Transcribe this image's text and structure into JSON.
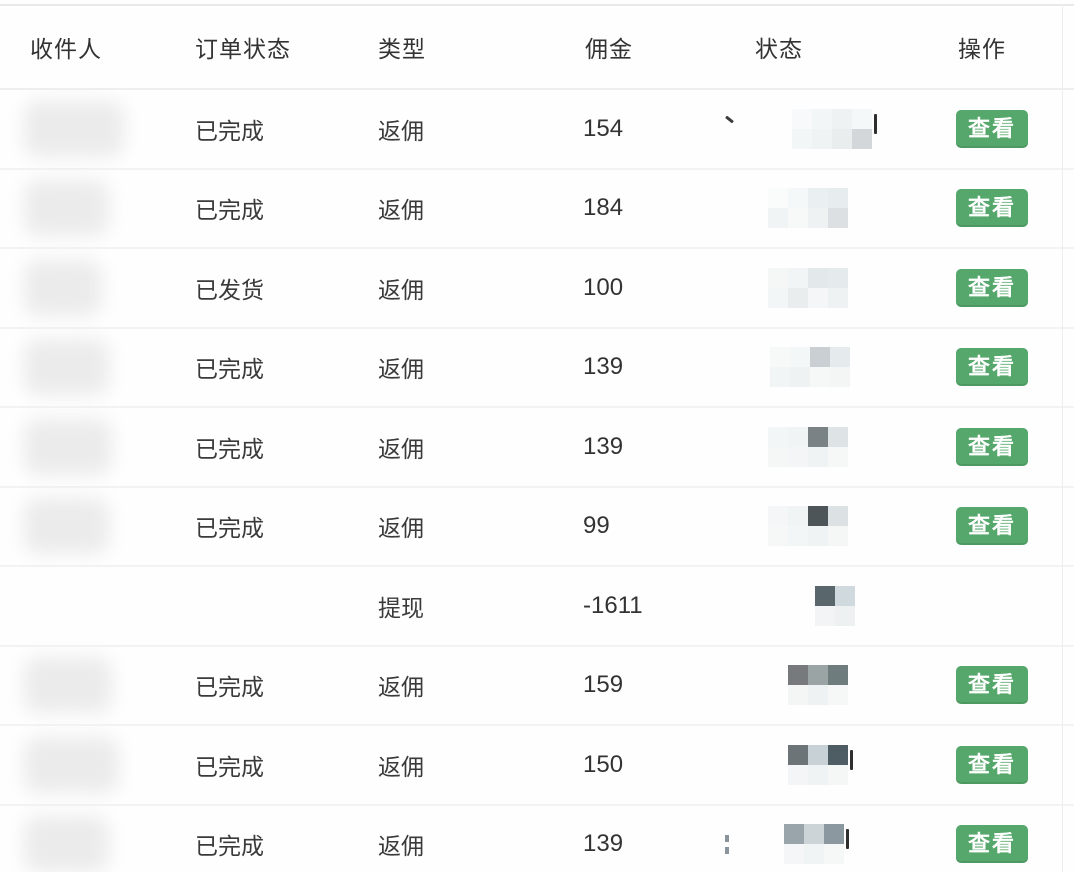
{
  "colors": {
    "accent_green": "#55a76b",
    "header_text": "#333333",
    "body_text": "#3a3a3a",
    "separator": "#f3f3f3",
    "top_border": "#e9e9e9"
  },
  "table": {
    "columns": [
      {
        "key": "recipient",
        "label": "收件人"
      },
      {
        "key": "order_status",
        "label": "订单状态"
      },
      {
        "key": "type",
        "label": "类型"
      },
      {
        "key": "commission",
        "label": "佣金"
      },
      {
        "key": "status",
        "label": "状态"
      },
      {
        "key": "action",
        "label": "操作"
      }
    ],
    "action_label": "查看",
    "rows": [
      {
        "recipient_redacted": true,
        "recipient_blob_width": 100,
        "order_status": "已完成",
        "type": "返佣",
        "commission": "154",
        "has_action": true,
        "mosaic": {
          "offset": 55,
          "prefix": "diag",
          "suffix": "bar",
          "tiles": [
            [
              "#f7f9fa",
              "#f3f6f7",
              "#eef2f3",
              "#f5f8f8"
            ],
            [
              "#f3f6f6",
              "#eff3f3",
              "#e9edee",
              "#d3d7da"
            ]
          ]
        }
      },
      {
        "recipient_redacted": true,
        "recipient_blob_width": 85,
        "order_status": "已完成",
        "type": "返佣",
        "commission": "184",
        "has_action": true,
        "mosaic": {
          "offset": 43,
          "prefix": null,
          "suffix": null,
          "tiles": [
            [
              "#fafbfb",
              "#f5f8f8",
              "#eaeff1",
              "#e7ecee"
            ],
            [
              "#f1f4f4",
              "#f7f9f9",
              "#eff2f3",
              "#dce0e2"
            ]
          ]
        }
      },
      {
        "recipient_redacted": true,
        "recipient_blob_width": 78,
        "order_status": "已发货",
        "type": "返佣",
        "commission": "100",
        "has_action": true,
        "mosaic": {
          "offset": 43,
          "prefix": null,
          "suffix": null,
          "tiles": [
            [
              "#f5f7f7",
              "#f2f5f5",
              "#e3e8ea",
              "#e5eaec"
            ],
            [
              "#f3f6f6",
              "#e9edee",
              "#f4f6f7",
              "#eff2f3"
            ]
          ]
        }
      },
      {
        "recipient_redacted": true,
        "recipient_blob_width": 85,
        "order_status": "已完成",
        "type": "返佣",
        "commission": "139",
        "has_action": true,
        "mosaic": {
          "offset": 45,
          "prefix": null,
          "suffix": null,
          "tiles": [
            [
              "#f7f9f9",
              "#f4f7f7",
              "#c9cfd3",
              "#e5eaed"
            ],
            [
              "#f2f5f5",
              "#eff2f2",
              "#f6f8f8",
              "#f4f6f6"
            ]
          ]
        }
      },
      {
        "recipient_redacted": true,
        "recipient_blob_width": 88,
        "order_status": "已完成",
        "type": "返佣",
        "commission": "139",
        "has_action": true,
        "mosaic": {
          "offset": 43,
          "prefix": null,
          "suffix": null,
          "tiles": [
            [
              "#f3f6f6",
              "#f1f4f5",
              "#7b8285",
              "#dee3e6"
            ],
            [
              "#f5f7f7",
              "#f3f5f6",
              "#f0f3f4",
              "#f6f8f8"
            ]
          ]
        }
      },
      {
        "recipient_redacted": true,
        "recipient_blob_width": 85,
        "order_status": "已完成",
        "type": "返佣",
        "commission": "99",
        "has_action": true,
        "mosaic": {
          "offset": 43,
          "prefix": null,
          "suffix": null,
          "tiles": [
            [
              "#f4f6f7",
              "#f1f4f4",
              "#4e5558",
              "#dce1e4"
            ],
            [
              "#f6f8f8",
              "#f3f6f6",
              "#f0f3f3",
              "#f5f7f7"
            ]
          ]
        }
      },
      {
        "recipient_redacted": false,
        "recipient_blob_width": 0,
        "order_status": "",
        "type": "提现",
        "commission": "-1611",
        "has_action": false,
        "mosaic": {
          "offset": 90,
          "prefix": null,
          "suffix": null,
          "tiles": [
            [
              "#59666b",
              "#cfd9de"
            ],
            [
              "#f2f4f5",
              "#eef1f2"
            ]
          ]
        }
      },
      {
        "recipient_redacted": true,
        "recipient_blob_width": 88,
        "order_status": "已完成",
        "type": "返佣",
        "commission": "159",
        "has_action": true,
        "mosaic": {
          "offset": 63,
          "prefix": null,
          "suffix": null,
          "tiles": [
            [
              "#767a7d",
              "#9aa4a4",
              "#6f7c7e"
            ],
            [
              "#f4f6f6",
              "#eff2f2",
              "#f6f8f8"
            ]
          ]
        }
      },
      {
        "recipient_redacted": true,
        "recipient_blob_width": 95,
        "order_status": "已完成",
        "type": "返佣",
        "commission": "150",
        "has_action": true,
        "mosaic": {
          "offset": 63,
          "prefix": null,
          "suffix": "bar",
          "tiles": [
            [
              "#6d7477",
              "#c8d1d6",
              "#4e5c63"
            ],
            [
              "#f3f5f6",
              "#f0f3f4",
              "#f5f7f7"
            ]
          ]
        }
      },
      {
        "recipient_redacted": true,
        "recipient_blob_width": 85,
        "order_status": "已完成",
        "type": "返佣",
        "commission": "139",
        "has_action": true,
        "mosaic": {
          "offset": 52,
          "prefix": "colon",
          "suffix": "bar",
          "tiles": [
            [
              "#9aa5ab",
              "#ccd4d8",
              "#8b98a0"
            ],
            [
              "#f4f6f7",
              "#f1f4f5",
              "#f6f8f8"
            ]
          ]
        }
      }
    ]
  }
}
